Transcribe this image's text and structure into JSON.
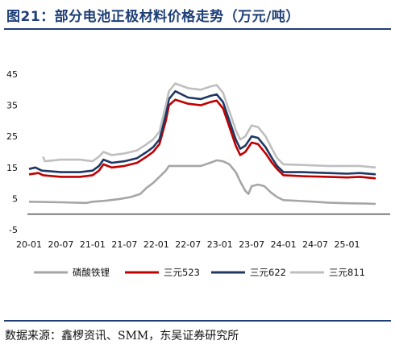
{
  "header": {
    "title": "图21：部分电池正极材料价格走势（万元/吨）"
  },
  "footer": {
    "source": "数据来源：鑫椤资讯、SMM，东吴证券研究所"
  },
  "colors": {
    "rule": "#1f3f77",
    "lfp": "#a6a6a6",
    "ncm523": "#c00000",
    "ncm622": "#1f3864",
    "ncm811": "#bfbfbf"
  },
  "chart_data": {
    "type": "line",
    "title": "部分电池正极材料价格走势（万元/吨）",
    "xlabel": "",
    "ylabel": "",
    "ylim": [
      -5,
      45
    ],
    "yticks": [
      -5,
      5,
      15,
      25,
      35,
      45
    ],
    "xlim": [
      2020.0,
      2025.5
    ],
    "xtick_labels": [
      "20-01",
      "20-07",
      "21-01",
      "21-07",
      "22-01",
      "22-07",
      "23-01",
      "23-07",
      "24-01",
      "24-07",
      "25-01"
    ],
    "grid": false,
    "legend": "bottom",
    "series": [
      {
        "name": "磷酸铁锂",
        "color": "#a6a6a6",
        "points": [
          [
            2020.0,
            4.0
          ],
          [
            2020.5,
            3.8
          ],
          [
            2020.9,
            3.6
          ],
          [
            2021.0,
            4.0
          ],
          [
            2021.2,
            4.3
          ],
          [
            2021.4,
            4.8
          ],
          [
            2021.6,
            5.5
          ],
          [
            2021.75,
            6.5
          ],
          [
            2021.85,
            8.5
          ],
          [
            2021.95,
            10.0
          ],
          [
            2022.05,
            12.0
          ],
          [
            2022.15,
            14.0
          ],
          [
            2022.2,
            15.5
          ],
          [
            2022.5,
            15.5
          ],
          [
            2022.7,
            15.5
          ],
          [
            2022.85,
            16.5
          ],
          [
            2022.95,
            17.3
          ],
          [
            2023.05,
            17.0
          ],
          [
            2023.15,
            16.0
          ],
          [
            2023.25,
            13.5
          ],
          [
            2023.32,
            10.5
          ],
          [
            2023.4,
            7.5
          ],
          [
            2023.45,
            6.5
          ],
          [
            2023.5,
            9.0
          ],
          [
            2023.6,
            9.5
          ],
          [
            2023.7,
            9.0
          ],
          [
            2023.8,
            7.0
          ],
          [
            2023.9,
            5.5
          ],
          [
            2024.0,
            4.5
          ],
          [
            2024.3,
            4.2
          ],
          [
            2024.7,
            3.7
          ],
          [
            2025.0,
            3.5
          ],
          [
            2025.3,
            3.4
          ],
          [
            2025.45,
            3.3
          ]
        ]
      },
      {
        "name": "三元523",
        "color": "#c00000",
        "points": [
          [
            2020.0,
            12.8
          ],
          [
            2020.15,
            13.2
          ],
          [
            2020.22,
            12.5
          ],
          [
            2020.5,
            12.0
          ],
          [
            2020.8,
            12.0
          ],
          [
            2021.0,
            12.5
          ],
          [
            2021.1,
            14.0
          ],
          [
            2021.17,
            16.0
          ],
          [
            2021.3,
            15.0
          ],
          [
            2021.5,
            15.5
          ],
          [
            2021.7,
            16.5
          ],
          [
            2021.85,
            18.5
          ],
          [
            2021.95,
            20.0
          ],
          [
            2022.05,
            22.5
          ],
          [
            2022.15,
            30.0
          ],
          [
            2022.2,
            35.0
          ],
          [
            2022.3,
            36.8
          ],
          [
            2022.5,
            35.5
          ],
          [
            2022.7,
            35.0
          ],
          [
            2022.85,
            36.0
          ],
          [
            2022.95,
            36.5
          ],
          [
            2023.05,
            34.0
          ],
          [
            2023.15,
            28.0
          ],
          [
            2023.25,
            22.0
          ],
          [
            2023.32,
            19.0
          ],
          [
            2023.4,
            20.0
          ],
          [
            2023.5,
            23.0
          ],
          [
            2023.6,
            22.5
          ],
          [
            2023.72,
            19.5
          ],
          [
            2023.82,
            16.5
          ],
          [
            2023.9,
            14.5
          ],
          [
            2024.0,
            12.5
          ],
          [
            2024.3,
            12.2
          ],
          [
            2024.7,
            12.0
          ],
          [
            2025.0,
            11.8
          ],
          [
            2025.2,
            12.0
          ],
          [
            2025.45,
            11.5
          ]
        ]
      },
      {
        "name": "三元622",
        "color": "#1f3864",
        "points": [
          [
            2020.0,
            14.5
          ],
          [
            2020.1,
            15.0
          ],
          [
            2020.2,
            14.0
          ],
          [
            2020.5,
            13.5
          ],
          [
            2020.8,
            13.5
          ],
          [
            2021.0,
            14.0
          ],
          [
            2021.1,
            15.5
          ],
          [
            2021.17,
            17.5
          ],
          [
            2021.3,
            16.5
          ],
          [
            2021.5,
            17.0
          ],
          [
            2021.7,
            18.0
          ],
          [
            2021.85,
            20.0
          ],
          [
            2021.95,
            21.5
          ],
          [
            2022.05,
            24.0
          ],
          [
            2022.15,
            32.0
          ],
          [
            2022.2,
            37.0
          ],
          [
            2022.3,
            39.5
          ],
          [
            2022.5,
            37.5
          ],
          [
            2022.7,
            37.0
          ],
          [
            2022.85,
            38.0
          ],
          [
            2022.95,
            38.5
          ],
          [
            2023.05,
            36.0
          ],
          [
            2023.15,
            30.0
          ],
          [
            2023.25,
            24.0
          ],
          [
            2023.32,
            21.0
          ],
          [
            2023.4,
            22.0
          ],
          [
            2023.5,
            25.0
          ],
          [
            2023.6,
            24.5
          ],
          [
            2023.72,
            21.5
          ],
          [
            2023.82,
            18.0
          ],
          [
            2023.9,
            15.5
          ],
          [
            2024.0,
            13.5
          ],
          [
            2024.3,
            13.5
          ],
          [
            2024.7,
            13.2
          ],
          [
            2025.0,
            13.0
          ],
          [
            2025.2,
            13.2
          ],
          [
            2025.45,
            12.8
          ]
        ]
      },
      {
        "name": "三元811",
        "color": "#bfbfbf",
        "points": [
          [
            2020.22,
            18.5
          ],
          [
            2020.25,
            17.0
          ],
          [
            2020.5,
            17.5
          ],
          [
            2020.8,
            17.5
          ],
          [
            2021.0,
            17.0
          ],
          [
            2021.1,
            18.5
          ],
          [
            2021.17,
            20.0
          ],
          [
            2021.3,
            19.0
          ],
          [
            2021.5,
            19.5
          ],
          [
            2021.7,
            20.5
          ],
          [
            2021.85,
            22.5
          ],
          [
            2021.95,
            24.0
          ],
          [
            2022.05,
            26.5
          ],
          [
            2022.15,
            35.0
          ],
          [
            2022.2,
            39.5
          ],
          [
            2022.3,
            42.0
          ],
          [
            2022.5,
            40.5
          ],
          [
            2022.7,
            40.0
          ],
          [
            2022.85,
            41.0
          ],
          [
            2022.95,
            41.5
          ],
          [
            2023.05,
            39.0
          ],
          [
            2023.15,
            33.0
          ],
          [
            2023.25,
            27.0
          ],
          [
            2023.32,
            24.0
          ],
          [
            2023.4,
            25.0
          ],
          [
            2023.5,
            28.5
          ],
          [
            2023.6,
            28.0
          ],
          [
            2023.72,
            25.0
          ],
          [
            2023.82,
            21.0
          ],
          [
            2023.9,
            18.0
          ],
          [
            2024.0,
            16.0
          ],
          [
            2024.3,
            15.8
          ],
          [
            2024.7,
            15.5
          ],
          [
            2025.0,
            15.5
          ],
          [
            2025.2,
            15.5
          ],
          [
            2025.45,
            15.0
          ]
        ]
      }
    ]
  }
}
